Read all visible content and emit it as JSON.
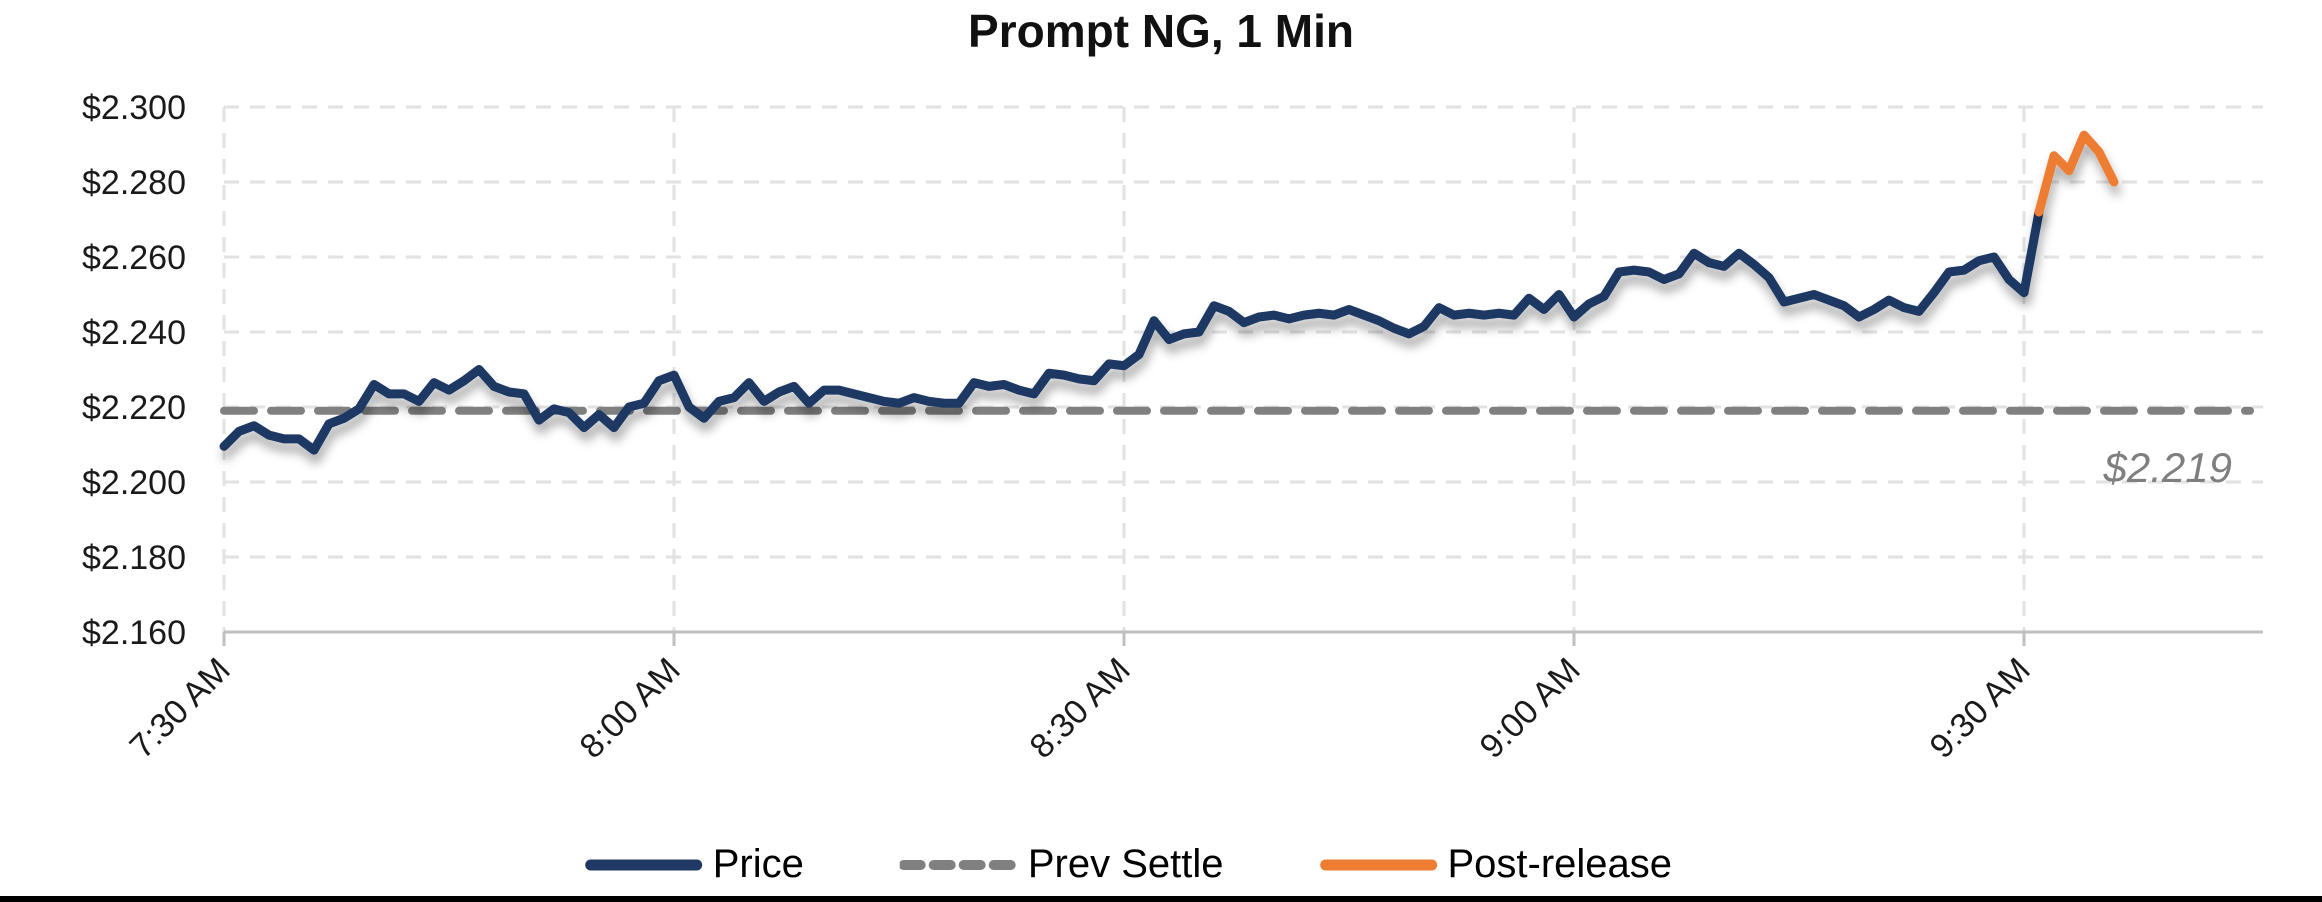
{
  "chart_data": {
    "type": "line",
    "title": "Prompt NG, 1 Min",
    "x_axis": {
      "tick_labels": [
        "7:30 AM",
        "8:00 AM",
        "8:30 AM",
        "9:00 AM",
        "9:30 AM"
      ],
      "tick_minutes": [
        0,
        30,
        60,
        90,
        120
      ],
      "start_time": "7:30 AM",
      "interval_minutes": 1,
      "domain_minutes": [
        0,
        136
      ]
    },
    "y_axis": {
      "tick_labels": [
        "$2.300",
        "$2.280",
        "$2.260",
        "$2.240",
        "$2.220",
        "$2.200",
        "$2.180",
        "$2.160"
      ],
      "tick_values": [
        2.3,
        2.28,
        2.26,
        2.24,
        2.22,
        2.2,
        2.18,
        2.16
      ],
      "min": 2.16,
      "max": 2.3,
      "grid": "dashed"
    },
    "series": [
      {
        "name": "Price",
        "color": "#1F3864",
        "style": "solid",
        "start_minute": 0,
        "values": [
          2.2095,
          2.2135,
          2.215,
          2.2125,
          2.2115,
          2.2115,
          2.2085,
          2.2155,
          2.217,
          2.2195,
          2.226,
          2.2235,
          2.2235,
          2.2215,
          2.2265,
          2.2245,
          2.227,
          2.23,
          2.2255,
          2.224,
          2.2235,
          2.2165,
          2.2195,
          2.2185,
          2.2145,
          2.218,
          2.2145,
          2.22,
          2.221,
          2.227,
          2.2285,
          2.22,
          2.217,
          2.2215,
          2.2225,
          2.2265,
          2.2215,
          2.224,
          2.2255,
          2.221,
          2.2245,
          2.2245,
          2.2235,
          2.2225,
          2.2215,
          2.221,
          2.2225,
          2.2215,
          2.221,
          2.221,
          2.2265,
          2.2255,
          2.226,
          2.2245,
          2.2235,
          2.229,
          2.2285,
          2.2275,
          2.227,
          2.2315,
          2.231,
          2.234,
          2.243,
          2.238,
          2.2395,
          2.24,
          2.247,
          2.2455,
          2.2425,
          2.244,
          2.2445,
          2.2435,
          2.2445,
          2.245,
          2.2445,
          2.246,
          2.2445,
          2.243,
          2.241,
          2.2395,
          2.2415,
          2.2465,
          2.2445,
          2.245,
          2.2445,
          2.245,
          2.2445,
          2.249,
          2.246,
          2.25,
          2.244,
          2.2475,
          2.2495,
          2.256,
          2.2565,
          2.256,
          2.254,
          2.2555,
          2.261,
          2.2585,
          2.2575,
          2.261,
          2.258,
          2.2545,
          2.248,
          2.249,
          2.25,
          2.2485,
          2.247,
          2.244,
          2.246,
          2.2485,
          2.2465,
          2.2455,
          2.2505,
          2.256,
          2.2565,
          2.259,
          2.26,
          2.254,
          2.2505,
          2.272
        ]
      },
      {
        "name": "Prev Settle",
        "color": "#808080",
        "style": "dashed",
        "value": 2.219
      },
      {
        "name": "Post-release",
        "color": "#ED7D31",
        "style": "solid",
        "start_minute": 121,
        "values": [
          2.272,
          2.287,
          2.283,
          2.2925,
          2.288,
          2.28
        ]
      }
    ],
    "annotation": {
      "label": "$2.219",
      "color": "#7f7f7f"
    },
    "legend": {
      "position": "bottom",
      "entries": [
        "Price",
        "Prev Settle",
        "Post-release"
      ]
    },
    "colors": {
      "grid": "#E2E2E2",
      "axis": "#BFBFBF",
      "price": "#1F3864",
      "prev_settle": "#808080",
      "post_release": "#ED7D31"
    }
  }
}
